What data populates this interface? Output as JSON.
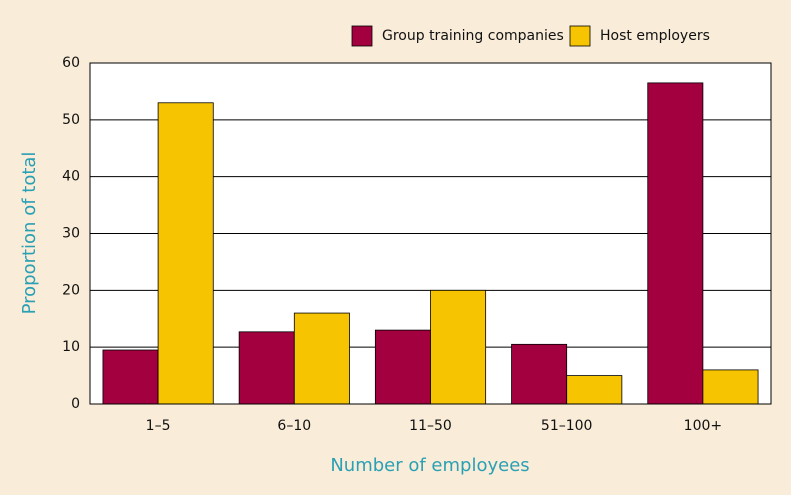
{
  "chart_data": {
    "type": "bar",
    "xlabel": "Number of employees",
    "ylabel": "Proportion of total",
    "categories": [
      "1–5",
      "6–10",
      "11–50",
      "51–100",
      "100+"
    ],
    "series": [
      {
        "name": "Group training companies",
        "color": "#a3003f",
        "values": [
          9.5,
          12.7,
          13,
          10.5,
          56.5
        ]
      },
      {
        "name": "Host employers",
        "color": "#f6c400",
        "values": [
          53,
          16,
          20,
          5,
          6
        ]
      }
    ],
    "ylim": [
      0,
      60
    ],
    "yticks": [
      0,
      10,
      20,
      30,
      40,
      50,
      60
    ],
    "grid": true,
    "legend": "top-right"
  }
}
